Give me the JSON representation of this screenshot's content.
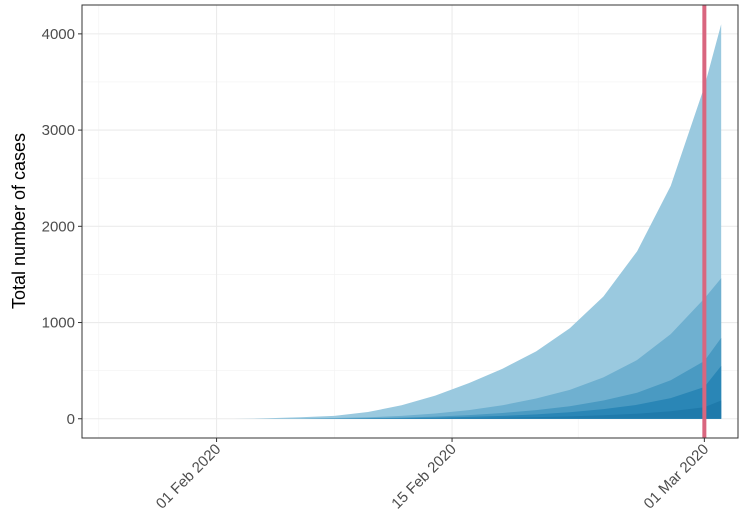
{
  "chart_data": {
    "type": "area",
    "title": "",
    "xlabel": "",
    "ylabel": "Total number of cases",
    "x_ticks": [
      "2020-02-01",
      "2020-02-15",
      "2020-03-01"
    ],
    "x_tick_labels": [
      "01 Feb 2020",
      "15 Feb 2020",
      "01 Mar 2020"
    ],
    "y_ticks": [
      0,
      1000,
      2000,
      3000,
      4000
    ],
    "y_tick_labels": [
      "0",
      "1000",
      "2000",
      "3000",
      "4000"
    ],
    "xlim": [
      "2020-01-24",
      "2020-03-03"
    ],
    "ylim": [
      -200,
      4300
    ],
    "grid": true,
    "legend": "none",
    "x": [
      "2020-02-02",
      "2020-02-04",
      "2020-02-06",
      "2020-02-08",
      "2020-02-10",
      "2020-02-12",
      "2020-02-14",
      "2020-02-16",
      "2020-02-18",
      "2020-02-20",
      "2020-02-22",
      "2020-02-24",
      "2020-02-26",
      "2020-02-28",
      "2020-03-01",
      "2020-03-02"
    ],
    "series": [
      {
        "upper": [
          0,
          5,
          15,
          30,
          70,
          140,
          240,
          370,
          520,
          700,
          940,
          1270,
          1740,
          2420,
          3450,
          4100
        ]
      },
      {
        "upper": [
          0,
          1,
          3,
          8,
          15,
          30,
          55,
          90,
          140,
          210,
          300,
          430,
          610,
          880,
          1250,
          1460
        ]
      },
      {
        "upper": [
          0,
          0,
          1,
          3,
          6,
          12,
          22,
          38,
          60,
          90,
          130,
          190,
          270,
          400,
          600,
          840
        ]
      },
      {
        "upper": [
          0,
          0,
          0,
          1,
          3,
          6,
          11,
          19,
          30,
          45,
          68,
          100,
          145,
          215,
          330,
          550
        ]
      },
      {
        "upper": [
          0,
          0,
          0,
          0,
          1,
          2,
          4,
          7,
          11,
          17,
          25,
          36,
          52,
          78,
          120,
          190
        ]
      }
    ],
    "fill_colors": [
      "#9ac9df",
      "#6fb0d0",
      "#4a9ac2",
      "#2a86b6",
      "#1f7aab"
    ],
    "vline": {
      "x": "2020-03-01",
      "color": "#d9667f"
    }
  }
}
